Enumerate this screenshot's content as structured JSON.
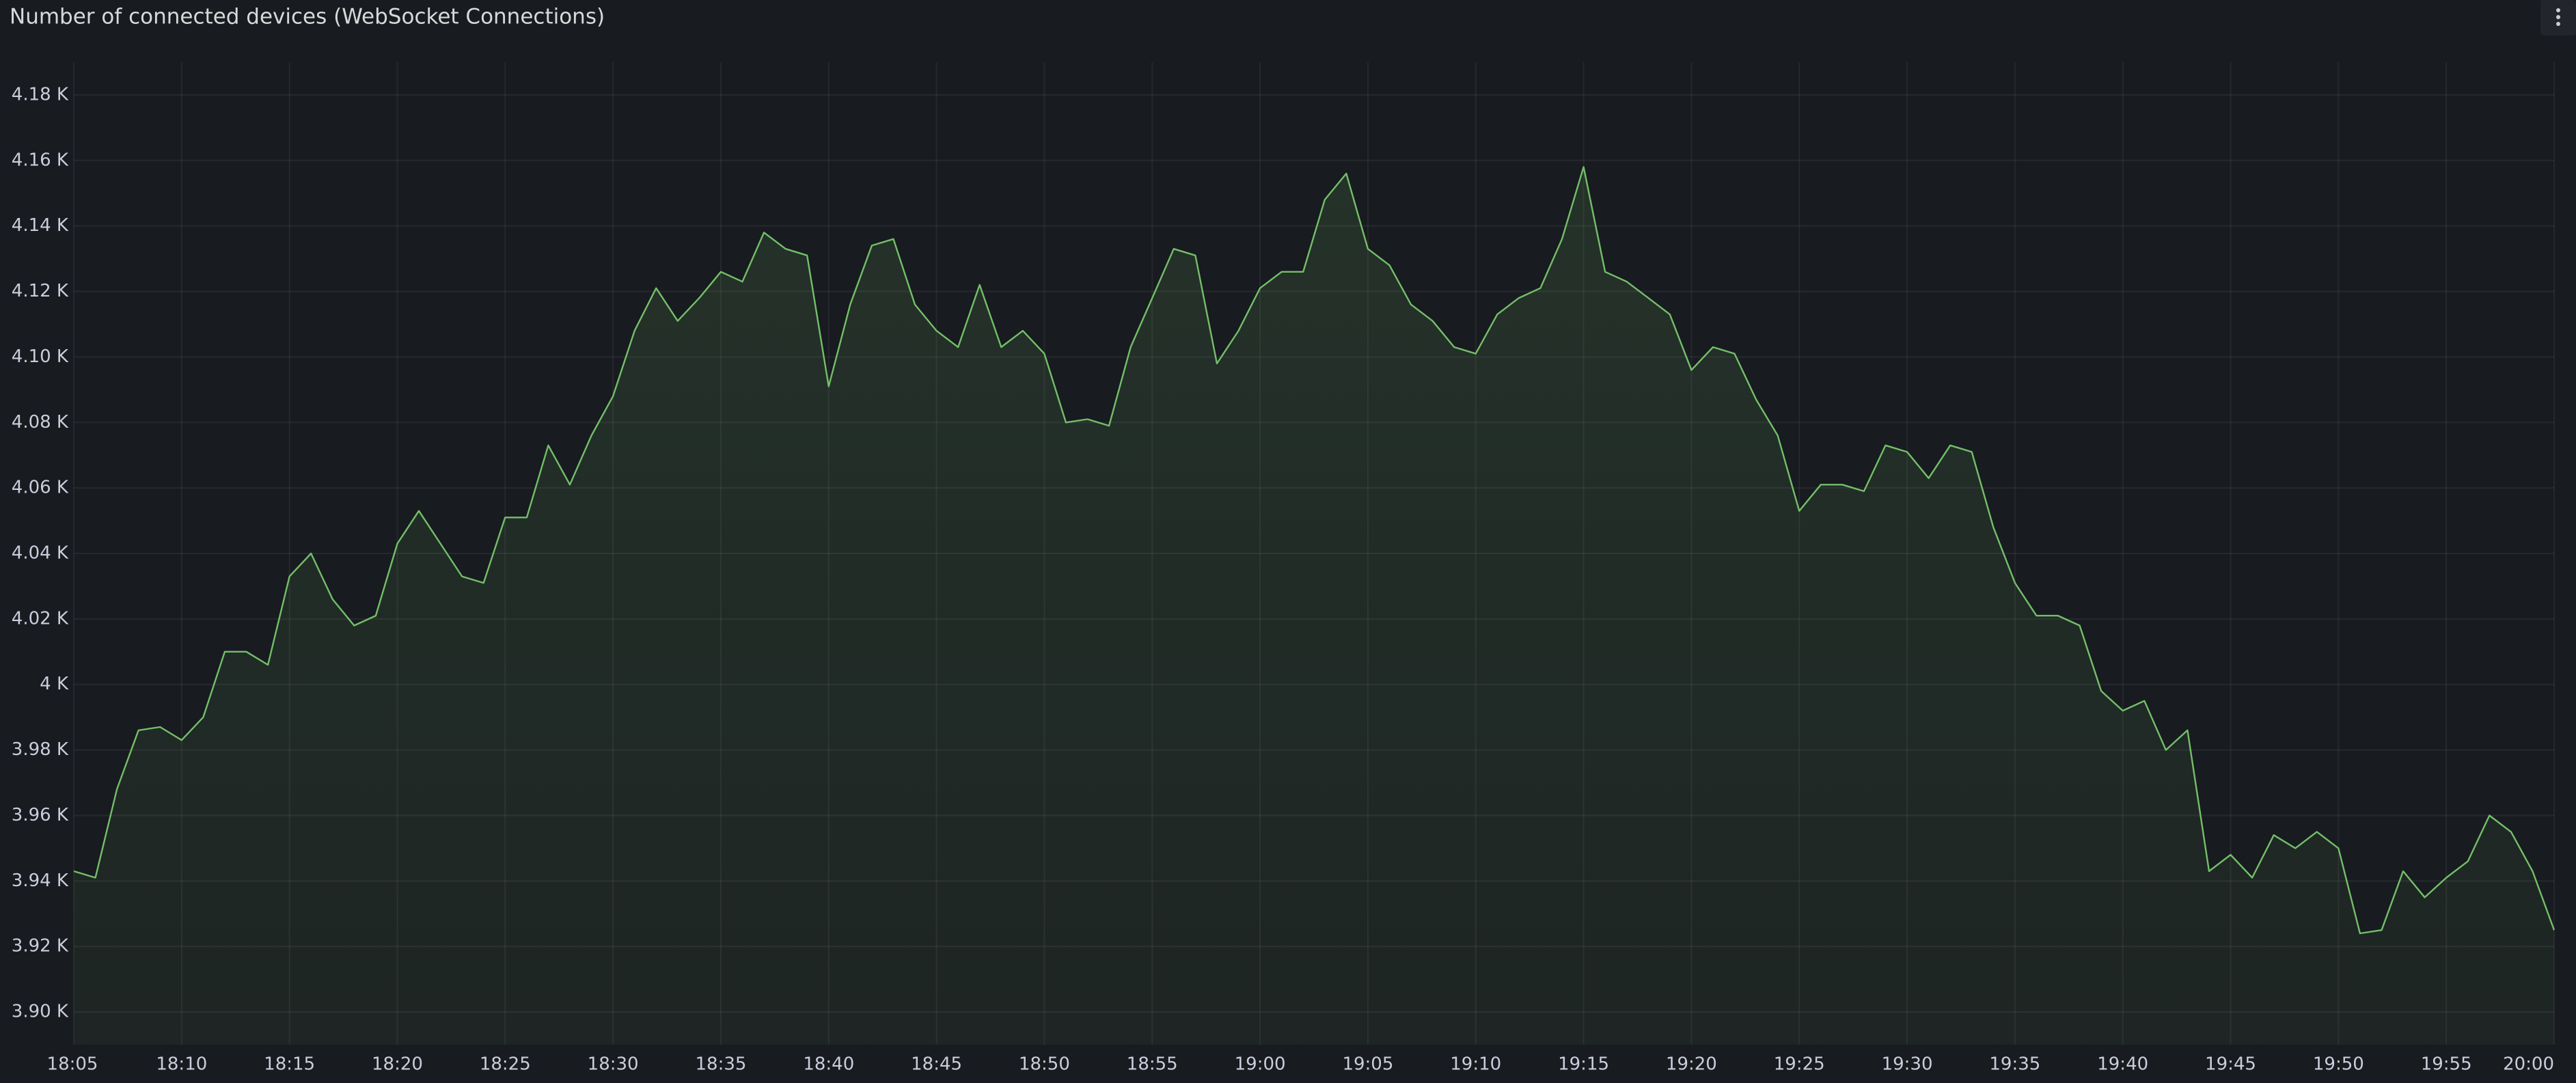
{
  "chart_data": {
    "type": "line",
    "title": "Number of connected devices (WebSocket Connections)",
    "x": [
      "18:05",
      "18:06",
      "18:07",
      "18:08",
      "18:09",
      "18:10",
      "18:11",
      "18:12",
      "18:13",
      "18:14",
      "18:15",
      "18:16",
      "18:17",
      "18:18",
      "18:19",
      "18:20",
      "18:21",
      "18:22",
      "18:23",
      "18:24",
      "18:25",
      "18:26",
      "18:27",
      "18:28",
      "18:29",
      "18:30",
      "18:31",
      "18:32",
      "18:33",
      "18:34",
      "18:35",
      "18:36",
      "18:37",
      "18:38",
      "18:39",
      "18:40",
      "18:41",
      "18:42",
      "18:43",
      "18:44",
      "18:45",
      "18:46",
      "18:47",
      "18:48",
      "18:49",
      "18:50",
      "18:51",
      "18:52",
      "18:53",
      "18:54",
      "18:55",
      "18:56",
      "18:57",
      "18:58",
      "18:59",
      "19:00",
      "19:01",
      "19:02",
      "19:03",
      "19:04",
      "19:05",
      "19:06",
      "19:07",
      "19:08",
      "19:09",
      "19:10",
      "19:11",
      "19:12",
      "19:13",
      "19:14",
      "19:15",
      "19:16",
      "19:17",
      "19:18",
      "19:19",
      "19:20",
      "19:21",
      "19:22",
      "19:23",
      "19:24",
      "19:25",
      "19:26",
      "19:27",
      "19:28",
      "19:29",
      "19:30",
      "19:31",
      "19:32",
      "19:33",
      "19:34",
      "19:35",
      "19:36",
      "19:37",
      "19:38",
      "19:39",
      "19:40",
      "19:41",
      "19:42",
      "19:43",
      "19:44",
      "19:45",
      "19:46",
      "19:47",
      "19:48",
      "19:49",
      "19:50",
      "19:51",
      "19:52",
      "19:53",
      "19:54",
      "19:55",
      "19:56",
      "19:57",
      "19:58",
      "19:59",
      "20:00"
    ],
    "series": [
      {
        "color": "#73bf69",
        "values": [
          3943,
          3941,
          3968,
          3986,
          3987,
          3983,
          3990,
          4010,
          4010,
          4006,
          4033,
          4040,
          4026,
          4018,
          4021,
          4043,
          4053,
          4043,
          4033,
          4031,
          4051,
          4051,
          4073,
          4061,
          4076,
          4088,
          4108,
          4121,
          4111,
          4118,
          4126,
          4123,
          4138,
          4133,
          4131,
          4091,
          4116,
          4134,
          4136,
          4116,
          4108,
          4103,
          4122,
          4103,
          4108,
          4101,
          4080,
          4081,
          4079,
          4103,
          4118,
          4133,
          4131,
          4098,
          4108,
          4121,
          4126,
          4126,
          4148,
          4156,
          4133,
          4128,
          4116,
          4111,
          4103,
          4101,
          4113,
          4118,
          4121,
          4136,
          4158,
          4126,
          4123,
          4118,
          4113,
          4096,
          4103,
          4101,
          4087,
          4076,
          4053,
          4061,
          4061,
          4059,
          4073,
          4071,
          4063,
          4073,
          4071,
          4048,
          4031,
          4021,
          4021,
          4018,
          3998,
          3992,
          3995,
          3980,
          3986,
          3943,
          3948,
          3941,
          3954,
          3950,
          3955,
          3950,
          3924,
          3925,
          3943,
          3935,
          3941,
          3946,
          3960,
          3955,
          3943,
          3925
        ]
      }
    ],
    "xlim": [
      "18:05",
      "20:00"
    ],
    "xticks": [
      "18:05",
      "18:10",
      "18:15",
      "18:20",
      "18:25",
      "18:30",
      "18:35",
      "18:40",
      "18:45",
      "18:50",
      "18:55",
      "19:00",
      "19:05",
      "19:10",
      "19:15",
      "19:20",
      "19:25",
      "19:30",
      "19:35",
      "19:40",
      "19:45",
      "19:50",
      "19:55",
      "20:00"
    ],
    "ylim": [
      3890,
      4190
    ],
    "yticks": [
      {
        "value": 3900,
        "label": "3.90 K"
      },
      {
        "value": 3920,
        "label": "3.92 K"
      },
      {
        "value": 3940,
        "label": "3.94 K"
      },
      {
        "value": 3960,
        "label": "3.96 K"
      },
      {
        "value": 3980,
        "label": "3.98 K"
      },
      {
        "value": 4000,
        "label": "4 K"
      },
      {
        "value": 4020,
        "label": "4.02 K"
      },
      {
        "value": 4040,
        "label": "4.04 K"
      },
      {
        "value": 4060,
        "label": "4.06 K"
      },
      {
        "value": 4080,
        "label": "4.08 K"
      },
      {
        "value": 4100,
        "label": "4.10 K"
      },
      {
        "value": 4120,
        "label": "4.12 K"
      },
      {
        "value": 4140,
        "label": "4.14 K"
      },
      {
        "value": 4160,
        "label": "4.16 K"
      },
      {
        "value": 4180,
        "label": "4.18 K"
      }
    ],
    "grid": true
  }
}
